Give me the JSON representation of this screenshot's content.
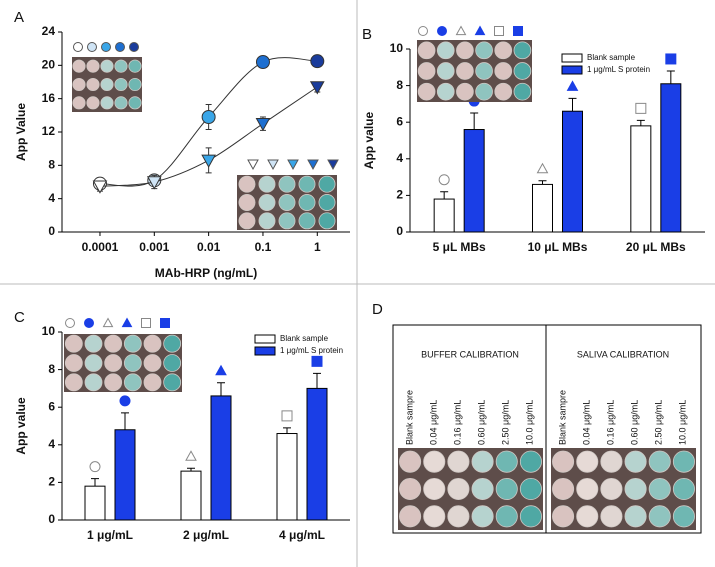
{
  "chart_data": [
    {
      "type": "line",
      "label": "A",
      "xlabel": "MAb-HRP (ng/mL)",
      "ylabel": "App Value",
      "log_x": true,
      "x": [
        0.0001,
        0.001,
        0.01,
        0.1,
        1
      ],
      "xlim": [
        2e-05,
        4
      ],
      "xticks": [
        0.0001,
        0.001,
        0.01,
        0.1,
        1
      ],
      "ylim": [
        0,
        24
      ],
      "yticks": [
        0,
        4,
        8,
        12,
        16,
        20,
        24
      ],
      "series": [
        {
          "marker": "circle",
          "color": "#1a3c9c",
          "point_colors": [
            "#ffffff",
            "#cfe4f5",
            "#3aa6e8",
            "#1e6fd0",
            "#1a3c9c"
          ],
          "values": [
            5.8,
            6.2,
            13.8,
            20.4,
            20.5
          ],
          "errors": [
            0.4,
            0.6,
            1.5,
            0.7,
            0.5
          ]
        },
        {
          "marker": "triangle",
          "color": "#1a3c9c",
          "point_colors": [
            "#ffffff",
            "#cfe4f5",
            "#3aa6e8",
            "#1e6fd0",
            "#1a3c9c"
          ],
          "values": [
            5.5,
            6.0,
            8.6,
            13.0,
            17.4
          ],
          "errors": [
            0.6,
            0.8,
            1.5,
            0.8,
            0.6
          ]
        }
      ]
    },
    {
      "type": "bar",
      "label": "B",
      "ylabel": "App value",
      "categories": [
        "5 μL MBs",
        "10 μL MBs",
        "20 μL MBs"
      ],
      "ylim": [
        0,
        10
      ],
      "yticks": [
        0,
        2,
        4,
        6,
        8,
        10
      ],
      "legend": "upper right",
      "series": [
        {
          "name": "Blank sample",
          "color": "#ffffff",
          "values": [
            1.8,
            2.6,
            5.8
          ],
          "errors": [
            0.4,
            0.2,
            0.3
          ]
        },
        {
          "name": "1 μg/mL S protein",
          "color": "#1a3ee6",
          "values": [
            5.6,
            6.6,
            8.1
          ],
          "errors": [
            0.9,
            0.7,
            0.7
          ]
        }
      ]
    },
    {
      "type": "bar",
      "label": "C",
      "ylabel": "App value",
      "categories": [
        "1 μg/mL",
        "2 μg/mL",
        "4 μg/mL"
      ],
      "ylim": [
        0,
        10
      ],
      "yticks": [
        0,
        2,
        4,
        6,
        8,
        10
      ],
      "legend": "upper right",
      "series": [
        {
          "name": "Blank sample",
          "color": "#ffffff",
          "values": [
            1.8,
            2.6,
            4.6
          ],
          "errors": [
            0.4,
            0.15,
            0.3
          ]
        },
        {
          "name": "1 μg/mL S protein",
          "color": "#1a3ee6",
          "values": [
            4.8,
            6.6,
            7.0
          ],
          "errors": [
            0.9,
            0.7,
            0.8
          ]
        }
      ]
    }
  ],
  "panel_d": {
    "label": "D",
    "groups": [
      {
        "title": "BUFFER CALIBRATION",
        "columns": [
          "Blank sampre",
          "0.04 μg/mL",
          "0.16 μg/mL",
          "0.60 μg/mL",
          "2.50 μg/mL",
          "10.0 μg/mL"
        ]
      },
      {
        "title": "SALIVA CALIBRATION",
        "columns": [
          "Blank sampre",
          "0.04 μg/mL",
          "0.16 μg/mL",
          "0.60 μg/mL",
          "2.50 μg/mL",
          "10.0 μg/mL"
        ]
      }
    ]
  }
}
